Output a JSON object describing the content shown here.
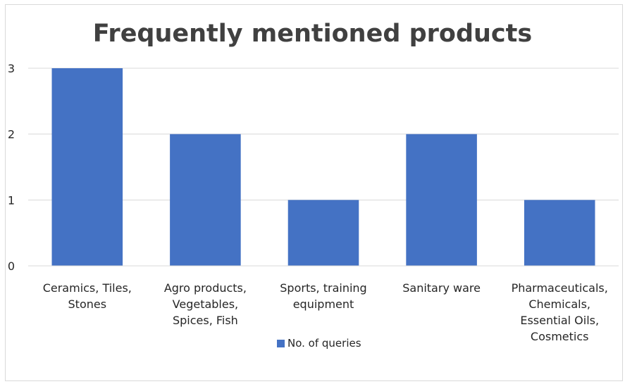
{
  "chart_data": {
    "type": "bar",
    "title": "Frequently mentioned products",
    "xlabel": "",
    "ylabel": "",
    "categories": [
      [
        "Ceramics, Tiles,",
        "Stones"
      ],
      [
        "Agro products,",
        "Vegetables,",
        "Spices, Fish"
      ],
      [
        "Sports, training",
        "equipment"
      ],
      [
        "Sanitary ware"
      ],
      [
        "Pharmaceuticals,",
        "Chemicals,",
        "Essential Oils,",
        "Cosmetics"
      ]
    ],
    "series": [
      {
        "name": "No. of queries",
        "values": [
          3,
          2,
          1,
          2,
          1
        ],
        "color": "#4472c4"
      }
    ],
    "ylim": [
      0,
      3
    ],
    "yticks": [
      "0",
      "1",
      "2",
      "3"
    ],
    "grid": true,
    "legend_position": "bottom"
  }
}
